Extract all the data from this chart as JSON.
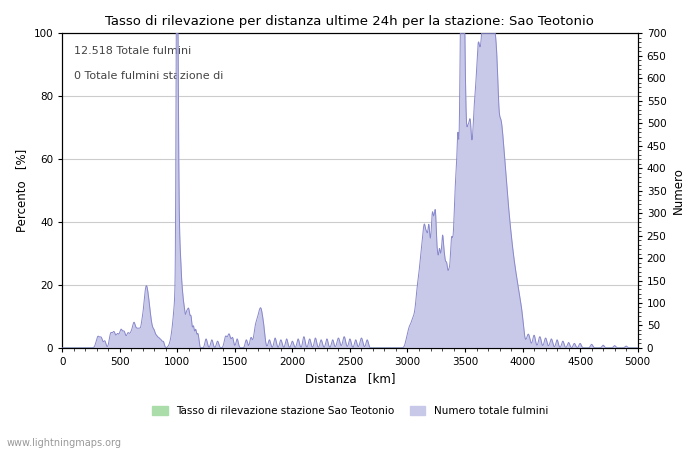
{
  "title": "Tasso di rilevazione per distanza ultime 24h per la stazione: Sao Teotonio",
  "xlabel": "Distanza   [km]",
  "ylabel_left": "Percento   [%]",
  "ylabel_right": "Numero",
  "annotation_line1": "12.518 Totale fulmini",
  "annotation_line2": "0 Totale fulmini stazione di",
  "xlim": [
    0,
    5000
  ],
  "ylim_left": [
    0,
    100
  ],
  "ylim_right": [
    0,
    700
  ],
  "xticks": [
    0,
    500,
    1000,
    1500,
    2000,
    2500,
    3000,
    3500,
    4000,
    4500,
    5000
  ],
  "yticks_left": [
    0,
    20,
    40,
    60,
    80,
    100
  ],
  "yticks_right": [
    0,
    50,
    100,
    150,
    200,
    250,
    300,
    350,
    400,
    450,
    500,
    550,
    600,
    650,
    700
  ],
  "watermark": "www.lightningmaps.org",
  "legend_label_green": "Tasso di rilevazione stazione Sao Teotonio",
  "legend_label_blue": "Numero totale fulmini",
  "color_blue_line": "#8888cc",
  "color_blue_fill": "#c8c8e8",
  "color_green_fill": "#aaddaa",
  "background_color": "#ffffff",
  "grid_color": "#cccccc"
}
